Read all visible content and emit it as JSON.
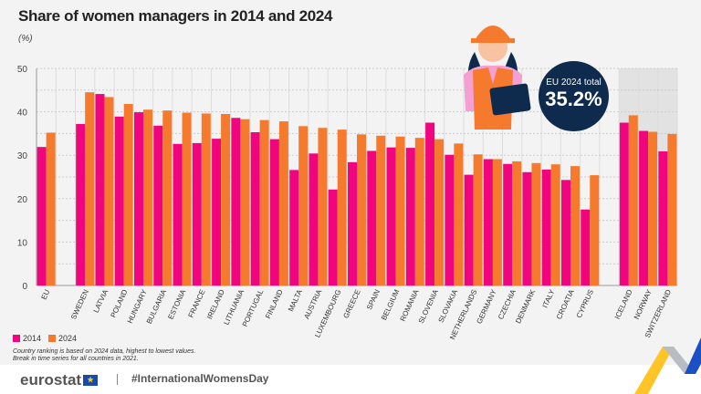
{
  "header": {
    "title": "Share of women managers in 2014 and 2024",
    "unit": "(%)"
  },
  "badge": {
    "label": "EU 2024 total",
    "value": "35.2%"
  },
  "legend": [
    "2014",
    "2024"
  ],
  "notes": [
    "Country ranking is based on 2024 data, highest to lowest values.",
    "Break in time series for all countries in 2021."
  ],
  "footer": {
    "logo": "eurostat",
    "hashtag": "#InternationalWomensDay"
  },
  "colors": {
    "s2014": "#f0057f",
    "s2024": "#f57a2e",
    "badge": "#0e2a4c"
  },
  "chart_data": {
    "type": "bar",
    "title": "Share of women managers in 2014 and 2024",
    "ylabel": "(%)",
    "ylim": [
      0,
      50
    ],
    "yticks": [
      0,
      10,
      20,
      30,
      40,
      50
    ],
    "grid": true,
    "legend_position": "bottom-left",
    "categories": [
      "EU",
      "SWEDEN",
      "LATVIA",
      "POLAND",
      "HUNGARY",
      "BULGARIA",
      "ESTONIA",
      "FRANCE",
      "IRELAND",
      "LITHUANIA",
      "PORTUGAL",
      "FINLAND",
      "MALTA",
      "AUSTRIA",
      "LUXEMBOURG",
      "GREECE",
      "SPAIN",
      "BELGIUM",
      "ROMANIA",
      "SLOVENIA",
      "SLOVAKIA",
      "NETHERLANDS",
      "GERMANY",
      "CZECHIA",
      "DENMARK",
      "ITALY",
      "CROATIA",
      "CYPRUS",
      "ICELAND",
      "NORWAY",
      "SWITZERLAND"
    ],
    "series": [
      {
        "name": "2014",
        "values": [
          31.9,
          37.2,
          44.1,
          38.9,
          39.9,
          36.8,
          32.6,
          32.8,
          33.8,
          38.6,
          35.3,
          33.7,
          26.6,
          30.4,
          22.1,
          28.4,
          31.0,
          31.8,
          31.7,
          37.5,
          30.1,
          25.5,
          29.1,
          28.0,
          26.1,
          26.7,
          24.3,
          17.5,
          37.5,
          35.6,
          30.9
        ]
      },
      {
        "name": "2024",
        "values": [
          35.2,
          44.5,
          43.4,
          41.8,
          40.5,
          40.3,
          39.8,
          39.6,
          39.5,
          38.3,
          38.1,
          37.8,
          36.7,
          36.3,
          35.9,
          34.8,
          34.5,
          34.3,
          34.0,
          33.7,
          32.7,
          30.2,
          29.1,
          28.6,
          28.2,
          27.9,
          27.5,
          25.4,
          39.2,
          35.4,
          34.9
        ]
      }
    ]
  }
}
